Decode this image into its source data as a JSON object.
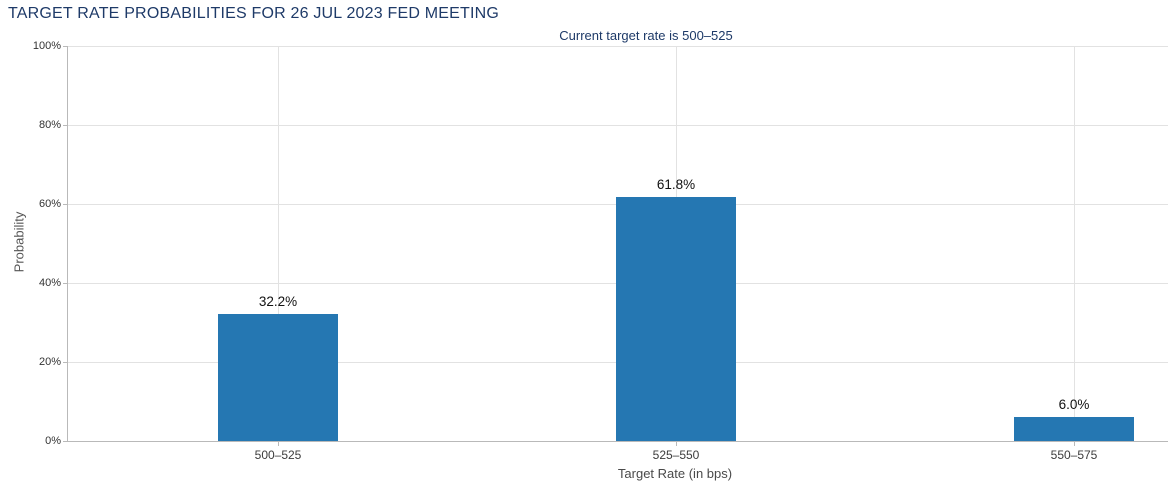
{
  "chart_data": {
    "type": "bar",
    "title": "TARGET RATE PROBABILITIES FOR 26 JUL 2023 FED MEETING",
    "subtitle": "Current target rate is 500–525",
    "categories": [
      "500–525",
      "525–550",
      "550–575"
    ],
    "values": [
      32.2,
      61.8,
      6.0
    ],
    "value_labels": [
      "32.2%",
      "61.8%",
      "6.0%"
    ],
    "xlabel": "Target Rate (in bps)",
    "ylabel": "Probability",
    "ylim": [
      0,
      100
    ],
    "ytick_values": [
      0,
      20,
      40,
      60,
      80,
      100
    ],
    "ytick_labels": [
      "0%",
      "20%",
      "40%",
      "60%",
      "80%",
      "100%"
    ],
    "grid": true,
    "legend": "none",
    "colors": {
      "bar": "#2577b2",
      "title": "#1e3a68",
      "grid": "#e2e2e2",
      "axis": "#b9b9b9",
      "tick_label": "#3c3c3c",
      "value_label": "#111111"
    }
  }
}
